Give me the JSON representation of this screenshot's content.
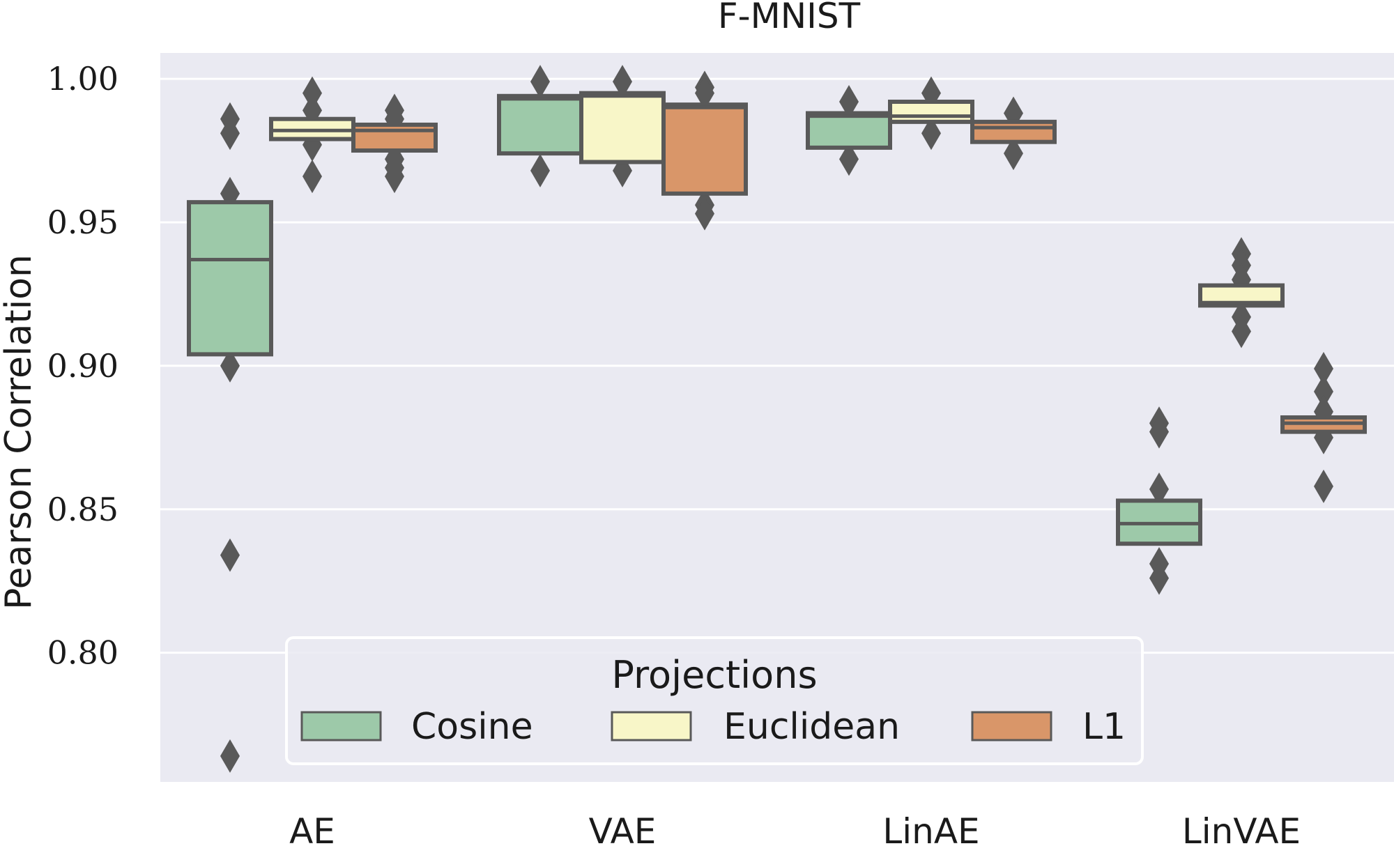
{
  "chart_data": {
    "type": "boxen",
    "title": "F-MNIST",
    "xlabel": "",
    "ylabel": "Pearson Correlation",
    "ylim": [
      0.755,
      1.009
    ],
    "yticks": [
      "0.80",
      "0.85",
      "0.90",
      "0.95",
      "1.00"
    ],
    "ytick_values": [
      0.8,
      0.85,
      0.9,
      0.95,
      1.0
    ],
    "categories": [
      "AE",
      "VAE",
      "LinAE",
      "LinVAE"
    ],
    "grid": true,
    "legend": {
      "title": "Projections",
      "placement": "lower-center",
      "columns": 3
    },
    "series": [
      {
        "name": "Cosine",
        "color": "#9dc9a9",
        "boxes": [
          {
            "q1": 0.904,
            "median": 0.937,
            "q3": 0.957,
            "outliers": [
              0.986,
              0.981,
              0.96,
              0.9,
              0.834,
              0.764
            ]
          },
          {
            "q1": 0.974,
            "median": 0.993,
            "q3": 0.994,
            "outliers": [
              0.999,
              0.968
            ]
          },
          {
            "q1": 0.976,
            "median": 0.987,
            "q3": 0.988,
            "outliers": [
              0.992,
              0.972
            ]
          },
          {
            "q1": 0.838,
            "median": 0.845,
            "q3": 0.853,
            "outliers": [
              0.88,
              0.877,
              0.857,
              0.831,
              0.826
            ]
          }
        ]
      },
      {
        "name": "Euclidean",
        "color": "#f8f6c8",
        "boxes": [
          {
            "q1": 0.979,
            "median": 0.982,
            "q3": 0.986,
            "outliers": [
              0.995,
              0.989,
              0.977,
              0.966
            ]
          },
          {
            "q1": 0.971,
            "median": 0.994,
            "q3": 0.995,
            "outliers": [
              0.999,
              0.968
            ]
          },
          {
            "q1": 0.985,
            "median": 0.987,
            "q3": 0.992,
            "outliers": [
              0.995,
              0.981
            ]
          },
          {
            "q1": 0.921,
            "median": 0.922,
            "q3": 0.928,
            "outliers": [
              0.939,
              0.935,
              0.93,
              0.917,
              0.912
            ]
          }
        ]
      },
      {
        "name": "L1",
        "color": "#d99669",
        "boxes": [
          {
            "q1": 0.975,
            "median": 0.982,
            "q3": 0.984,
            "outliers": [
              0.989,
              0.986,
              0.972,
              0.969,
              0.966
            ]
          },
          {
            "q1": 0.96,
            "median": 0.99,
            "q3": 0.991,
            "outliers": [
              0.997,
              0.995,
              0.956,
              0.953
            ]
          },
          {
            "q1": 0.978,
            "median": 0.983,
            "q3": 0.985,
            "outliers": [
              0.988,
              0.974
            ]
          },
          {
            "q1": 0.877,
            "median": 0.88,
            "q3": 0.882,
            "outliers": [
              0.899,
              0.891,
              0.884,
              0.875,
              0.858
            ]
          }
        ]
      }
    ]
  },
  "style": {
    "plot_bg": "#eaeaf2",
    "grid_color": "#ffffff",
    "edge_color": "#595959",
    "outlier_color": "#595959"
  }
}
